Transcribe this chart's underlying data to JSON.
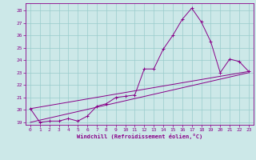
{
  "xlabel": "Windchill (Refroidissement éolien,°C)",
  "bg_color": "#cce8e8",
  "line_color": "#880088",
  "grid_color": "#99cccc",
  "xlim": [
    -0.5,
    23.5
  ],
  "ylim": [
    18.8,
    28.6
  ],
  "yticks": [
    19,
    20,
    21,
    22,
    23,
    24,
    25,
    26,
    27,
    28
  ],
  "xticks": [
    0,
    1,
    2,
    3,
    4,
    5,
    6,
    7,
    8,
    9,
    10,
    11,
    12,
    13,
    14,
    15,
    16,
    17,
    18,
    19,
    20,
    21,
    22,
    23
  ],
  "series": [
    {
      "x": [
        0,
        1,
        2,
        3,
        4,
        5,
        6,
        7,
        8,
        9,
        10,
        11,
        12,
        13,
        14,
        15,
        16,
        17,
        18,
        19,
        20,
        21,
        22,
        23
      ],
      "y": [
        20.1,
        19.0,
        19.1,
        19.1,
        19.3,
        19.1,
        19.5,
        20.3,
        20.5,
        21.0,
        21.1,
        21.2,
        23.3,
        23.3,
        24.9,
        26.0,
        27.3,
        28.2,
        27.1,
        25.5,
        23.0,
        24.1,
        23.9,
        23.1
      ]
    },
    {
      "x": [
        0,
        23
      ],
      "y": [
        20.1,
        23.1
      ]
    },
    {
      "x": [
        0,
        23
      ],
      "y": [
        19.0,
        23.0
      ]
    }
  ]
}
